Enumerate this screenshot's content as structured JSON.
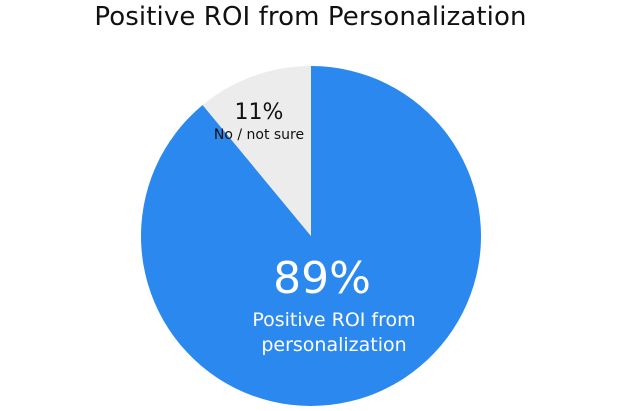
{
  "chart_data": {
    "type": "pie",
    "title": "Positive ROI from Personalization",
    "slices": [
      {
        "value": 89,
        "percent_label": "89%",
        "label_lines": [
          "Positive ROI from",
          "personalization"
        ],
        "color": "#2b88ef"
      },
      {
        "value": 11,
        "percent_label": "11%",
        "label_lines": [
          "No / not sure"
        ],
        "color": "#ececec"
      }
    ],
    "legend": "none"
  }
}
